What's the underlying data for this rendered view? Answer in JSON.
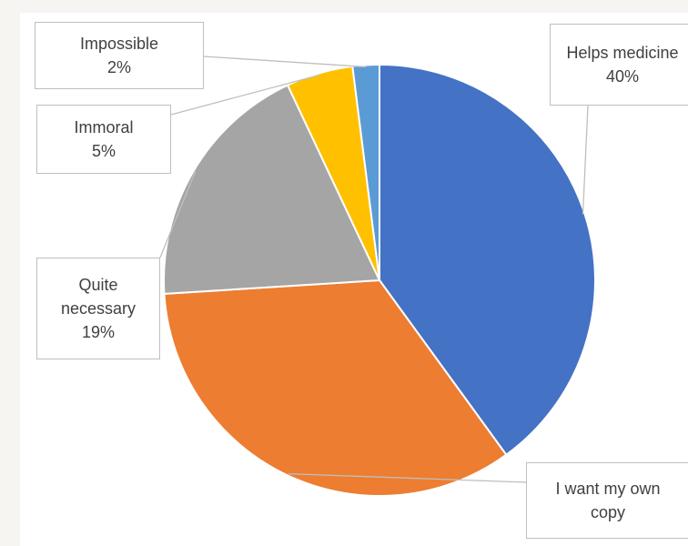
{
  "chart_data": {
    "type": "pie",
    "title": "",
    "colors": [
      "#4472c4",
      "#ed7d31",
      "#a5a5a5",
      "#ffc000",
      "#5b9bd5"
    ],
    "slices": [
      {
        "label": "Helps medicine",
        "value": 40,
        "value_label": "40%"
      },
      {
        "label": "I want my own copy",
        "value": 34,
        "value_label": ""
      },
      {
        "label": "Quite necessary",
        "value": 19,
        "value_label": "19%"
      },
      {
        "label": "Immoral",
        "value": 5,
        "value_label": "5%"
      },
      {
        "label": "Impossible",
        "value": 2,
        "value_label": "2%"
      }
    ]
  }
}
